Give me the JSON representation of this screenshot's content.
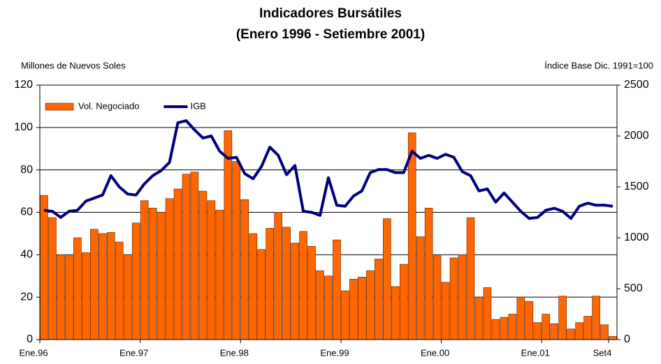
{
  "chart_data": {
    "type": "bar_line",
    "title": "Indicadores Bursátiles",
    "subtitle": "(Enero 1996 - Setiembre 2001)",
    "y_label": "Millones de Nuevos Soles",
    "y2_label": "Índice Base Dic. 1991=100",
    "categories": [
      "Ene.96",
      null,
      null,
      null,
      null,
      null,
      null,
      null,
      null,
      null,
      null,
      null,
      "Ene.97",
      null,
      null,
      null,
      null,
      null,
      null,
      null,
      null,
      null,
      null,
      null,
      "Ene.98",
      null,
      null,
      null,
      null,
      null,
      null,
      null,
      null,
      null,
      null,
      null,
      "Ene.99",
      null,
      null,
      null,
      null,
      null,
      null,
      null,
      null,
      null,
      null,
      null,
      "Ene.00",
      null,
      null,
      null,
      null,
      null,
      null,
      null,
      null,
      null,
      null,
      null,
      "Ene.01",
      null,
      null,
      null,
      null,
      null,
      null,
      null,
      "Set4"
    ],
    "series": [
      {
        "name": "Vol. Negociado",
        "kind": "bar",
        "color": "#ff6600",
        "values": [
          68,
          57.5,
          40,
          39.5,
          48,
          41,
          52,
          50,
          50.5,
          46,
          39.5,
          55,
          65.5,
          62,
          60,
          66.5,
          71,
          78,
          79,
          70,
          65.5,
          61,
          98.5,
          84,
          66,
          50,
          42.5,
          52.5,
          60,
          53,
          45.5,
          51,
          44,
          32.5,
          30,
          47,
          23,
          28.5,
          29.5,
          32.5,
          38,
          57,
          25,
          35.5,
          97.5,
          48.5,
          62,
          39.5,
          27,
          38.5,
          40,
          57.5,
          20,
          24.5,
          9.5,
          10.5,
          12,
          20,
          18,
          8,
          12,
          7.5,
          20.5,
          5,
          8,
          11,
          20.5,
          7,
          1.5
        ]
      },
      {
        "name": "IGB",
        "kind": "line",
        "axis": "y2",
        "color": "#000080",
        "values": [
          1270,
          1260,
          1200,
          1260,
          1270,
          1360,
          1390,
          1420,
          1610,
          1500,
          1430,
          1420,
          1530,
          1610,
          1660,
          1740,
          2130,
          2150,
          2060,
          1980,
          2000,
          1850,
          1780,
          1790,
          1630,
          1580,
          1700,
          1890,
          1810,
          1620,
          1710,
          1260,
          1250,
          1220,
          1590,
          1320,
          1310,
          1410,
          1460,
          1640,
          1670,
          1670,
          1640,
          1640,
          1850,
          1780,
          1810,
          1780,
          1820,
          1790,
          1650,
          1610,
          1460,
          1480,
          1350,
          1440,
          1350,
          1260,
          1190,
          1200,
          1270,
          1290,
          1260,
          1190,
          1310,
          1340,
          1320,
          1320,
          1310
        ]
      }
    ],
    "ylim": [
      0,
      120
    ],
    "yticks": [
      0,
      20,
      40,
      60,
      80,
      100,
      120
    ],
    "y2lim": [
      0,
      2500
    ],
    "y2ticks": [
      0,
      500,
      1000,
      1500,
      2000,
      2500
    ],
    "grid": true,
    "legend": "upper left"
  }
}
